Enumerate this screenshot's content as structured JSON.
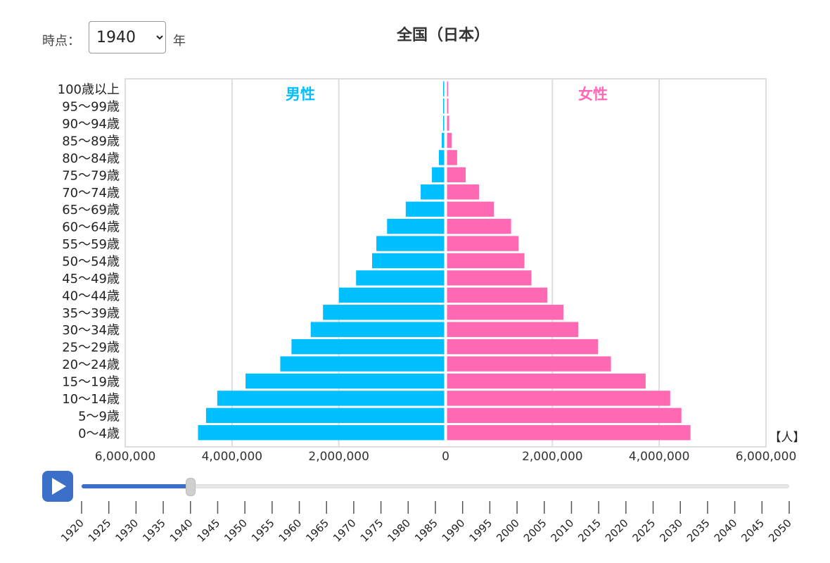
{
  "controls": {
    "time_label": "時点：",
    "selected_year": "1940",
    "year_unit": "年"
  },
  "chart_data": {
    "type": "bar",
    "title": "全国（日本）",
    "unit_label": "【人】",
    "male_label": "男性",
    "female_label": "女性",
    "colors": {
      "male": "#00bfff",
      "female": "#ff69b4"
    },
    "xlim": [
      -6000000,
      6000000
    ],
    "x_ticks": [
      -6000000,
      -4000000,
      -2000000,
      0,
      2000000,
      4000000,
      6000000
    ],
    "x_tick_labels": [
      "6,000,000",
      "4,000,000",
      "2,000,000",
      "0",
      "2,000,000",
      "4,000,000",
      "6,000,000"
    ],
    "categories": [
      "100歳以上",
      "95〜99歳",
      "90〜94歳",
      "85〜89歳",
      "80〜84歳",
      "75〜79歳",
      "70〜74歳",
      "65〜69歳",
      "60〜64歳",
      "55〜59歳",
      "50〜54歳",
      "45〜49歳",
      "40〜44歳",
      "35〜39歳",
      "30〜34歳",
      "25〜29歳",
      "20〜24歳",
      "15〜19歳",
      "10〜14歳",
      "5〜9歳",
      "0〜4歳"
    ],
    "series": [
      {
        "name": "男性",
        "values": [
          10000,
          15000,
          20000,
          45000,
          100000,
          230000,
          440000,
          720000,
          1070000,
          1270000,
          1350000,
          1650000,
          1970000,
          2270000,
          2500000,
          2860000,
          3070000,
          3720000,
          4250000,
          4460000,
          4610000
        ]
      },
      {
        "name": "女性",
        "values": [
          20000,
          25000,
          40000,
          90000,
          190000,
          350000,
          600000,
          880000,
          1200000,
          1340000,
          1450000,
          1580000,
          1880000,
          2180000,
          2460000,
          2830000,
          3070000,
          3720000,
          4180000,
          4390000,
          4560000
        ]
      }
    ]
  },
  "timeline": {
    "years": [
      "1920",
      "1925",
      "1930",
      "1935",
      "1940",
      "1945",
      "1950",
      "1955",
      "1960",
      "1965",
      "1970",
      "1975",
      "1980",
      "1985",
      "1990",
      "1995",
      "2000",
      "2005",
      "2010",
      "2015",
      "2020",
      "2025",
      "2030",
      "2035",
      "2040",
      "2045",
      "2050"
    ],
    "selected_index": 4
  },
  "icons": {
    "play": "play-icon"
  }
}
